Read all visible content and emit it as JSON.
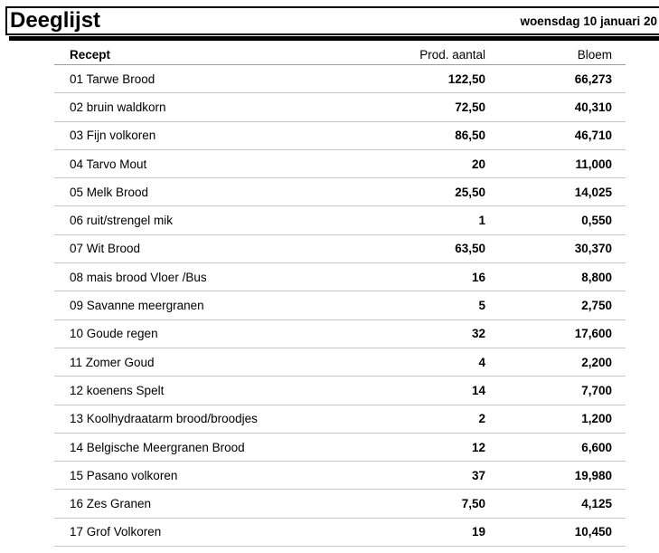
{
  "header": {
    "title": "Deeglijst",
    "date": "woensdag 10 januari 20"
  },
  "table": {
    "columns": [
      "Recept",
      "Prod. aantal",
      "Bloem"
    ],
    "rows": [
      {
        "recept": "01 Tarwe Brood",
        "prod_aantal": "122,50",
        "bloem": "66,273"
      },
      {
        "recept": "02 bruin waldkorn",
        "prod_aantal": "72,50",
        "bloem": "40,310"
      },
      {
        "recept": "03 Fijn volkoren",
        "prod_aantal": "86,50",
        "bloem": "46,710"
      },
      {
        "recept": "04 Tarvo Mout",
        "prod_aantal": "20",
        "bloem": "11,000"
      },
      {
        "recept": "05 Melk Brood",
        "prod_aantal": "25,50",
        "bloem": "14,025"
      },
      {
        "recept": "06 ruit/strengel mik",
        "prod_aantal": "1",
        "bloem": "0,550"
      },
      {
        "recept": "07 Wit Brood",
        "prod_aantal": "63,50",
        "bloem": "30,370"
      },
      {
        "recept": "08 mais brood Vloer /Bus",
        "prod_aantal": "16",
        "bloem": "8,800"
      },
      {
        "recept": "09 Savanne meergranen",
        "prod_aantal": "5",
        "bloem": "2,750"
      },
      {
        "recept": "10 Goude regen",
        "prod_aantal": "32",
        "bloem": "17,600"
      },
      {
        "recept": "11 Zomer Goud",
        "prod_aantal": "4",
        "bloem": "2,200"
      },
      {
        "recept": "12 koenens Spelt",
        "prod_aantal": "14",
        "bloem": "7,700"
      },
      {
        "recept": "13 Koolhydraatarm brood/broodjes",
        "prod_aantal": "2",
        "bloem": "1,200"
      },
      {
        "recept": "14 Belgische Meergranen Brood",
        "prod_aantal": "12",
        "bloem": "6,600"
      },
      {
        "recept": "15 Pasano volkoren",
        "prod_aantal": "37",
        "bloem": "19,980"
      },
      {
        "recept": "16 Zes Granen",
        "prod_aantal": "7,50",
        "bloem": "4,125"
      },
      {
        "recept": "17 Grof Volkoren",
        "prod_aantal": "19",
        "bloem": "10,450"
      }
    ]
  }
}
